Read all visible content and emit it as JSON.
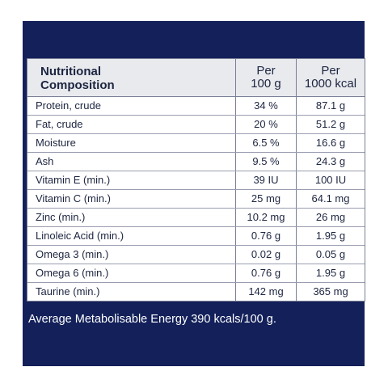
{
  "table": {
    "header": {
      "name_line1": "Nutritional",
      "name_line2": "Composition",
      "per100_line1": "Per",
      "per100_line2": "100 g",
      "per1000_line1": "Per",
      "per1000_line2": "1000 kcal"
    },
    "rows": [
      {
        "name": "Protein, crude",
        "per100": "34 %",
        "per1000": "87.1 g"
      },
      {
        "name": "Fat, crude",
        "per100": "20 %",
        "per1000": "51.2 g"
      },
      {
        "name": "Moisture",
        "per100": "6.5 %",
        "per1000": "16.6 g"
      },
      {
        "name": "Ash",
        "per100": "9.5 %",
        "per1000": "24.3 g"
      },
      {
        "name": "Vitamin E (min.)",
        "per100": "39 IU",
        "per1000": "100 IU"
      },
      {
        "name": "Vitamin C (min.)",
        "per100": "25 mg",
        "per1000": "64.1 mg"
      },
      {
        "name": "Zinc (min.)",
        "per100": "10.2 mg",
        "per1000": "26 mg"
      },
      {
        "name": "Linoleic Acid (min.)",
        "per100": "0.76 g",
        "per1000": "1.95 g"
      },
      {
        "name": "Omega 3 (min.)",
        "per100": "0.02 g",
        "per1000": "0.05 g"
      },
      {
        "name": "Omega 6 (min.)",
        "per100": "0.76 g",
        "per1000": "1.95 g"
      },
      {
        "name": "Taurine (min.)",
        "per100": "142 mg",
        "per1000": "365 mg"
      }
    ]
  },
  "footnote": "Average Metabolisable Energy 390 kcals/100 g.",
  "colors": {
    "panel": "#13205a",
    "header_bg": "#e8eaee",
    "text": "#1d2540"
  }
}
